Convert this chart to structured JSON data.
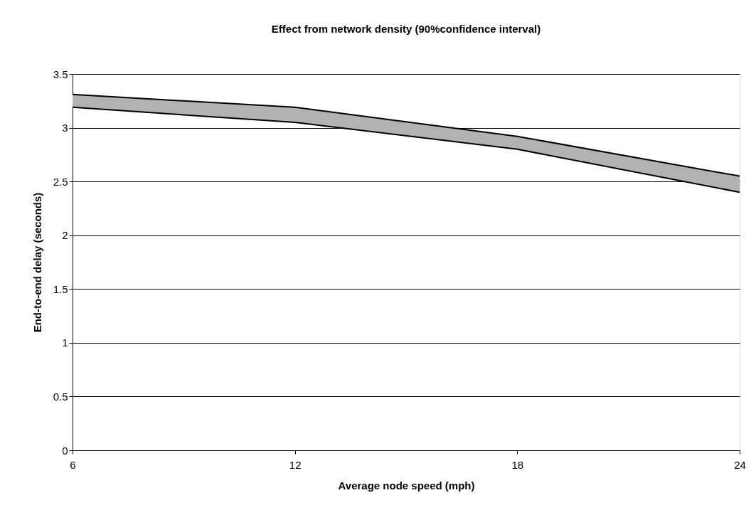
{
  "chart_data": {
    "type": "line",
    "title": "Effect from network density (90%confidence interval)",
    "xlabel": "Average node speed (mph)",
    "ylabel": "End-to-end delay (seconds)",
    "x": [
      6,
      12,
      18,
      24
    ],
    "series": [
      {
        "color": "#000000",
        "values": [
          3.19,
          3.05,
          2.8,
          2.4
        ],
        "lower": [
          3.19,
          3.05,
          2.8,
          2.4
        ],
        "upper": [
          3.31,
          3.19,
          2.92,
          2.55
        ]
      },
      {
        "color": "#000000",
        "values": [
          3.31,
          3.19,
          2.92,
          2.55
        ]
      }
    ],
    "xlim": [
      6,
      24
    ],
    "xticks": [
      6,
      12,
      18,
      24
    ],
    "ylim": [
      0,
      3.5
    ],
    "yticks": [
      0,
      0.5,
      1,
      1.5,
      2,
      2.5,
      3,
      3.5
    ],
    "grid": "y",
    "marker": "none",
    "line_style": "solid"
  }
}
